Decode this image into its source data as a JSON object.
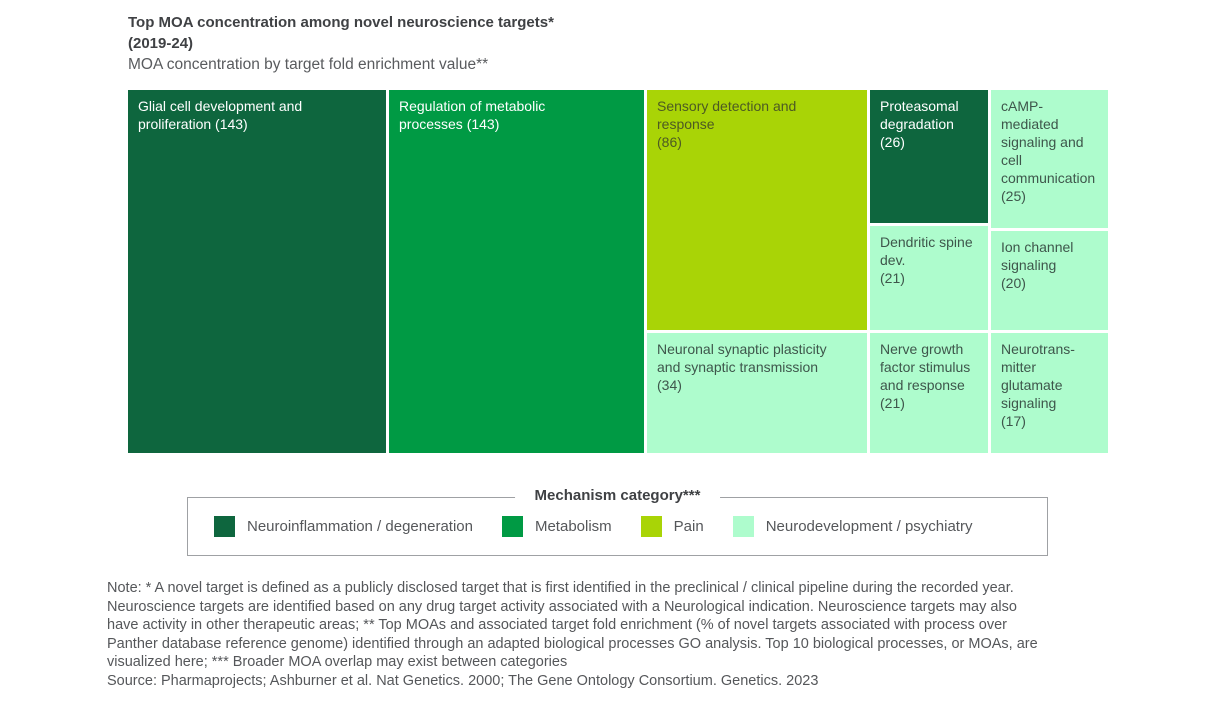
{
  "header": {
    "title": "Top MOA concentration among novel neuroscience targets*\n(2019-24)",
    "subtitle": "MOA concentration by target fold enrichment value**"
  },
  "colors": {
    "neuroinflammation": "#0e663e",
    "metabolism": "#009a44",
    "pain": "#a9d406",
    "neurodevelopment": "#aefccd"
  },
  "chart_data": {
    "type": "treemap",
    "title": "Top MOA concentration among novel neuroscience targets* (2019-24)",
    "subtitle": "MOA concentration by target fold enrichment value**",
    "value_meaning": "target fold enrichment",
    "legend_title": "Mechanism category***",
    "categories": [
      {
        "name": "Neuroinflammation / degeneration",
        "color": "#0e663e"
      },
      {
        "name": "Metabolism",
        "color": "#009a44"
      },
      {
        "name": "Pain",
        "color": "#a9d406"
      },
      {
        "name": "Neurodevelopment / psychiatry",
        "color": "#aefccd"
      }
    ],
    "nodes": [
      {
        "label": "Glial cell development and proliferation",
        "value": 143,
        "category": "Neuroinflammation / degeneration"
      },
      {
        "label": "Regulation of metabolic processes",
        "value": 143,
        "category": "Metabolism"
      },
      {
        "label": "Sensory detection and response",
        "value": 86,
        "category": "Pain"
      },
      {
        "label": "Neuronal synaptic plasticity and synaptic transmission",
        "value": 34,
        "category": "Neurodevelopment / psychiatry"
      },
      {
        "label": "Proteasomal degradation",
        "value": 26,
        "category": "Neuroinflammation / degeneration"
      },
      {
        "label": "cAMP-mediated signaling and cell communication",
        "value": 25,
        "category": "Neurodevelopment / psychiatry"
      },
      {
        "label": "Dendritic spine dev.",
        "value": 21,
        "category": "Neurodevelopment / psychiatry"
      },
      {
        "label": "Nerve growth factor stimulus and response",
        "value": 21,
        "category": "Neurodevelopment / psychiatry"
      },
      {
        "label": "Ion channel signaling",
        "value": 20,
        "category": "Neurodevelopment / psychiatry"
      },
      {
        "label": "Neurotransmitter glutamate signaling",
        "value": 17,
        "category": "Neurodevelopment / psychiatry"
      }
    ]
  },
  "treemap": {
    "cells": {
      "glial": {
        "text": "Glial cell development and\nproliferation (143)"
      },
      "metabolic": {
        "text": "Regulation of metabolic\nprocesses (143)"
      },
      "sensory": {
        "text": "Sensory detection and\nresponse\n(86)"
      },
      "neuronal": {
        "text": "Neuronal synaptic plasticity\nand synaptic transmission\n(34)"
      },
      "proteasomal": {
        "text": "Proteasomal\ndegradation\n(26)"
      },
      "dendritic": {
        "text": "Dendritic spine\ndev.\n(21)"
      },
      "nerve": {
        "text": "Nerve growth\nfactor stimulus\nand response\n(21)"
      },
      "camp": {
        "text": "cAMP-\nmediated\nsignaling and\ncell\ncommunication\n(25)"
      },
      "ion": {
        "text": "Ion channel\nsignaling\n(20)"
      },
      "neurotransmitter": {
        "text": "Neurotrans-\nmitter\nglutamate\nsignaling\n(17)"
      }
    }
  },
  "legend": {
    "title": "Mechanism category***",
    "items": [
      {
        "label": "Neuroinflammation / degeneration",
        "color": "#0e663e"
      },
      {
        "label": "Metabolism",
        "color": "#009a44"
      },
      {
        "label": "Pain",
        "color": "#a9d406"
      },
      {
        "label": "Neurodevelopment / psychiatry",
        "color": "#aefccd"
      }
    ]
  },
  "notes": {
    "lines": [
      "Note: * A novel target is defined as a publicly disclosed target that is first identified in the preclinical / clinical pipeline during the recorded year.",
      "Neuroscience targets are identified based on any drug target activity associated with a Neurological indication. Neuroscience targets may also",
      "have activity in other therapeutic areas; ** Top MOAs and associated target fold enrichment (% of novel targets associated with process over",
      "Panther database reference genome) identified through an adapted biological processes GO analysis. Top 10 biological processes, or MOAs, are",
      "visualized here; *** Broader MOA overlap may exist between categories"
    ],
    "source": "Source: Pharmaprojects; Ashburner et al. Nat Genetics. 2000; The Gene Ontology Consortium. Genetics. 2023"
  }
}
